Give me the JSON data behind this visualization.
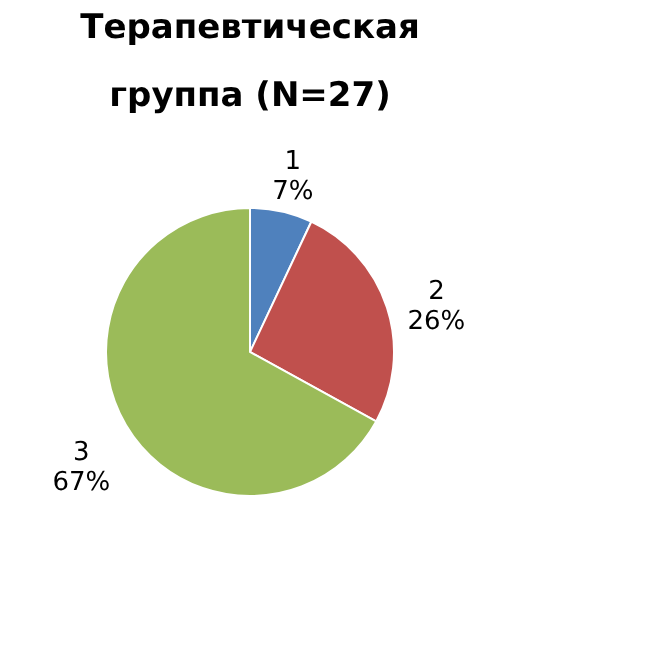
{
  "chart_data": {
    "type": "pie",
    "title": "Терапевтическая группа (N=27)",
    "categories": [
      "1",
      "2",
      "3"
    ],
    "values": [
      7,
      26,
      67
    ],
    "value_labels": [
      "7%",
      "26%",
      "67%"
    ],
    "colors": [
      "#4f81bd",
      "#c0504d",
      "#9bbb59"
    ],
    "legend": false
  }
}
